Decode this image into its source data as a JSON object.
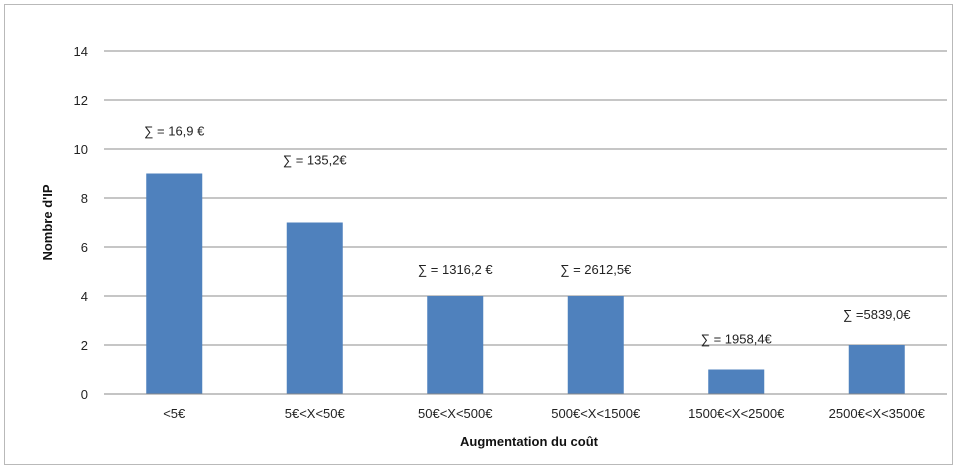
{
  "chart_data": {
    "type": "bar",
    "title": "",
    "xlabel": "Augmentation du coût",
    "ylabel": "Nombre d'IP",
    "ylim": [
      0,
      14
    ],
    "yticks": [
      0,
      2,
      4,
      6,
      8,
      10,
      12,
      14
    ],
    "grid": true,
    "legend": "none",
    "bar_color": "#4f81bd",
    "categories": [
      "<5€",
      "5€<X<50€",
      "50€<X<500€",
      "500€<X<1500€",
      "1500€<X<2500€",
      "2500€<X<3500€"
    ],
    "values": [
      9,
      7,
      4,
      4,
      1,
      2
    ],
    "annotations": [
      "∑ = 16,9 €",
      "∑ = 135,2€",
      "∑ = 1316,2 €",
      "∑ = 2612,5€",
      "∑ = 1958,4€",
      "∑ =5839,0€"
    ]
  }
}
